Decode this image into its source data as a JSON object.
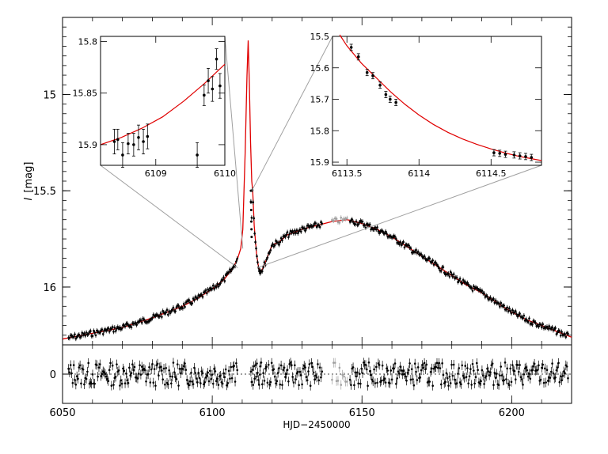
{
  "chart_data": [
    {
      "type": "line",
      "panel": "main",
      "ylabel_italic": "I",
      "ylabel_unit": "[mag]",
      "xlim": [
        6050,
        6220
      ],
      "ylim": [
        16.3,
        14.6
      ],
      "y_inverted": true,
      "yticks": [
        15,
        15.5,
        16
      ],
      "ytick_labels": [
        "15",
        "15.5",
        "16"
      ],
      "model_color": "#e00000",
      "data_color": "#000000",
      "highlight_color": "#a0a0a0",
      "model": {
        "name": "",
        "x": [
          6050,
          6060,
          6070,
          6080,
          6090,
          6095,
          6100,
          6104,
          6107,
          6108.5,
          6109.5,
          6110.2,
          6111,
          6111.6,
          6112,
          6112.4,
          6112.8,
          6113.2,
          6113.5,
          6114,
          6114.8,
          6115.5,
          6116.2,
          6117,
          6118,
          6119,
          6120,
          6122,
          6125,
          6130,
          6135,
          6140,
          6145,
          6150,
          6155,
          6160,
          6165,
          6170,
          6175,
          6180,
          6185,
          6190,
          6195,
          6200,
          6205,
          6210,
          6215,
          6220
        ],
        "y": [
          16.27,
          16.24,
          16.21,
          16.16,
          16.1,
          16.06,
          16.01,
          15.96,
          15.9,
          15.85,
          15.8,
          15.7,
          15.3,
          14.9,
          14.72,
          14.95,
          15.25,
          15.45,
          15.5,
          15.68,
          15.83,
          15.9,
          15.92,
          15.9,
          15.86,
          15.82,
          15.78,
          15.77,
          15.73,
          15.7,
          15.68,
          15.66,
          15.65,
          15.67,
          15.7,
          15.74,
          15.79,
          15.84,
          15.89,
          15.94,
          15.99,
          16.03,
          16.08,
          16.13,
          16.17,
          16.2,
          16.23,
          16.26
        ]
      },
      "observations_sample": {
        "x": [
          6052,
          6058,
          6062,
          6066,
          6070,
          6074,
          6078,
          6082,
          6086,
          6090,
          6094,
          6098,
          6102,
          6106,
          6108,
          6112.8,
          6113,
          6113.5,
          6114,
          6115,
          6116,
          6118,
          6120,
          6122,
          6126,
          6130,
          6134,
          6138,
          6141,
          6143,
          6146,
          6150,
          6154,
          6158,
          6162,
          6166,
          6170,
          6174,
          6178,
          6182,
          6186,
          6190,
          6194,
          6198,
          6202,
          6206,
          6210,
          6214,
          6218
        ],
        "y": [
          16.28,
          16.25,
          16.23,
          16.22,
          16.2,
          16.18,
          16.15,
          16.12,
          16.1,
          16.07,
          16.04,
          16.01,
          15.98,
          15.94,
          15.9,
          15.6,
          15.55,
          15.6,
          15.72,
          15.85,
          15.9,
          15.85,
          15.77,
          15.8,
          15.76,
          15.73,
          15.7,
          15.68,
          15.65,
          15.67,
          15.66,
          15.68,
          15.71,
          15.75,
          15.8,
          15.84,
          15.88,
          15.9,
          15.94,
          15.98,
          16.01,
          16.04,
          16.06,
          16.1,
          16.13,
          16.18,
          16.2,
          16.22,
          16.25
        ]
      }
    },
    {
      "type": "scatter",
      "panel": "residuals",
      "xlabel": "HJD−2450000",
      "xticks": [
        6050,
        6100,
        6150,
        6200
      ],
      "xtick_labels": [
        "6050",
        "6100",
        "6150",
        "6200"
      ],
      "ytick_labels": [
        "0"
      ],
      "ylim": [
        -0.15,
        0.15
      ],
      "zero_line": "dotted"
    },
    {
      "type": "line",
      "panel": "inset-left",
      "xlim": [
        6108.2,
        6110
      ],
      "ylim": [
        15.92,
        15.795
      ],
      "y_inverted": true,
      "xticks": [
        6109,
        6110
      ],
      "xtick_labels": [
        "6109",
        "6110"
      ],
      "yticks": [
        15.8,
        15.85,
        15.9
      ],
      "ytick_labels": [
        "15.8",
        "15.85",
        "15.9"
      ],
      "model": {
        "x": [
          6108.2,
          6108.5,
          6108.8,
          6109.1,
          6109.4,
          6109.7,
          6110
        ],
        "y": [
          15.9,
          15.893,
          15.884,
          15.873,
          15.858,
          15.841,
          15.822
        ]
      },
      "points": [
        {
          "x": 6108.4,
          "y": 15.897,
          "err": 0.012
        },
        {
          "x": 6108.45,
          "y": 15.895,
          "err": 0.01
        },
        {
          "x": 6108.52,
          "y": 15.91,
          "err": 0.012
        },
        {
          "x": 6108.6,
          "y": 15.899,
          "err": 0.01
        },
        {
          "x": 6108.68,
          "y": 15.9,
          "err": 0.011
        },
        {
          "x": 6108.75,
          "y": 15.893,
          "err": 0.012
        },
        {
          "x": 6108.82,
          "y": 15.897,
          "err": 0.012
        },
        {
          "x": 6108.88,
          "y": 15.892,
          "err": 0.012
        },
        {
          "x": 6109.6,
          "y": 15.91,
          "err": 0.012
        },
        {
          "x": 6109.7,
          "y": 15.852,
          "err": 0.01
        },
        {
          "x": 6109.76,
          "y": 15.838,
          "err": 0.012
        },
        {
          "x": 6109.82,
          "y": 15.846,
          "err": 0.012
        },
        {
          "x": 6109.88,
          "y": 15.817,
          "err": 0.01
        },
        {
          "x": 6109.93,
          "y": 15.843,
          "err": 0.012
        }
      ]
    },
    {
      "type": "line",
      "panel": "inset-right",
      "xlim": [
        6113.4,
        6114.85
      ],
      "ylim": [
        15.91,
        15.5
      ],
      "y_inverted": true,
      "xticks": [
        6113.5,
        6114,
        6114.5
      ],
      "xtick_labels": [
        "6113.5",
        "6114",
        "6114.5"
      ],
      "yticks": [
        15.5,
        15.6,
        15.7,
        15.8,
        15.9
      ],
      "ytick_labels": [
        "15.5",
        "15.6",
        "15.7",
        "15.8",
        "15.9"
      ],
      "model": {
        "x": [
          6113.45,
          6113.5,
          6113.6,
          6113.7,
          6113.8,
          6113.9,
          6114,
          6114.1,
          6114.2,
          6114.3,
          6114.4,
          6114.5,
          6114.6,
          6114.7,
          6114.85
        ],
        "y": [
          15.495,
          15.53,
          15.585,
          15.63,
          15.675,
          15.715,
          15.75,
          15.78,
          15.805,
          15.826,
          15.843,
          15.858,
          15.871,
          15.882,
          15.895
        ]
      },
      "points": [
        {
          "x": 6113.53,
          "y": 15.535,
          "err": 0.01
        },
        {
          "x": 6113.58,
          "y": 15.565,
          "err": 0.01
        },
        {
          "x": 6113.64,
          "y": 15.615,
          "err": 0.01
        },
        {
          "x": 6113.68,
          "y": 15.625,
          "err": 0.01
        },
        {
          "x": 6113.73,
          "y": 15.655,
          "err": 0.01
        },
        {
          "x": 6113.77,
          "y": 15.685,
          "err": 0.01
        },
        {
          "x": 6113.8,
          "y": 15.7,
          "err": 0.01
        },
        {
          "x": 6113.84,
          "y": 15.71,
          "err": 0.01
        },
        {
          "x": 6114.52,
          "y": 15.87,
          "err": 0.01
        },
        {
          "x": 6114.56,
          "y": 15.872,
          "err": 0.01
        },
        {
          "x": 6114.6,
          "y": 15.875,
          "err": 0.01
        },
        {
          "x": 6114.66,
          "y": 15.877,
          "err": 0.01
        },
        {
          "x": 6114.7,
          "y": 15.88,
          "err": 0.01
        },
        {
          "x": 6114.74,
          "y": 15.882,
          "err": 0.01
        },
        {
          "x": 6114.78,
          "y": 15.885,
          "err": 0.01
        }
      ]
    }
  ]
}
